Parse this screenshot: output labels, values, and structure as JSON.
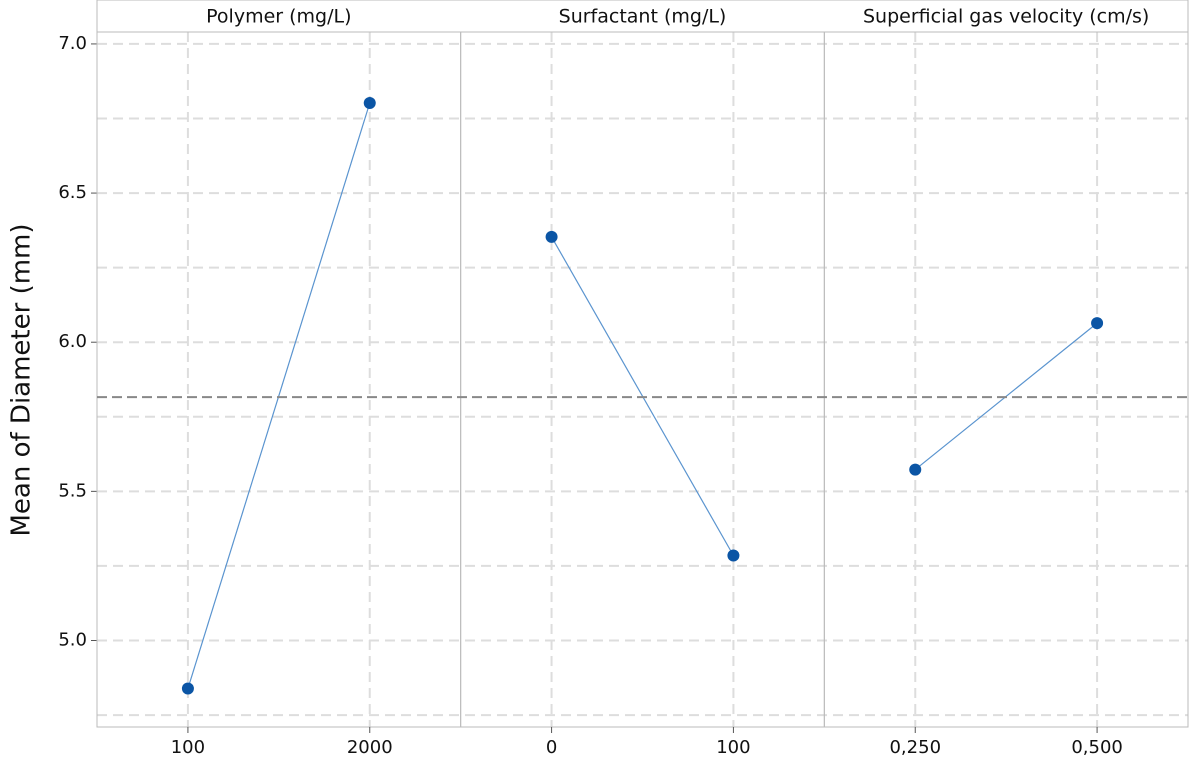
{
  "chart_data": {
    "type": "line",
    "ylabel": "Mean of Diameter (mm)",
    "ylim": [
      4.71,
      7.04
    ],
    "yticks": [
      {
        "value": 5,
        "label": "5.0"
      },
      {
        "value": 5.5,
        "label": "5.5"
      },
      {
        "value": 6,
        "label": "6.0"
      },
      {
        "value": 6.5,
        "label": "6.5"
      },
      {
        "value": 7,
        "label": "7.0"
      }
    ],
    "minor_yticks": [
      4.75,
      5.25,
      5.75,
      6.25,
      6.75
    ],
    "grid": true,
    "mean_line": 5.816,
    "color": "#0b55a5",
    "line_color": "#5a94cf",
    "panels": [
      {
        "title": "Polymer (mg/L)",
        "categories": [
          "100",
          "2000"
        ],
        "values": [
          4.839,
          6.802
        ]
      },
      {
        "title": "Surfactant (mg/L)",
        "categories": [
          "0",
          "100"
        ],
        "values": [
          6.353,
          5.285
        ]
      },
      {
        "title": "Superficial gas velocity (cm/s)",
        "categories": [
          "0,250",
          "0,500"
        ],
        "values": [
          5.573,
          6.064
        ]
      }
    ]
  }
}
